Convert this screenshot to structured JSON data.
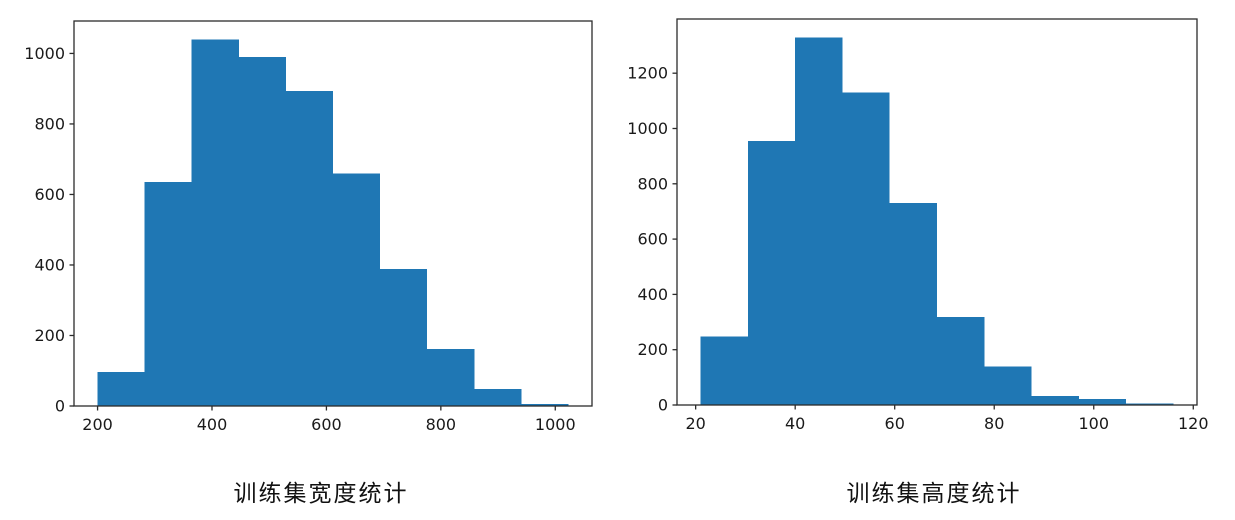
{
  "page": {
    "background": "#ffffff"
  },
  "chart_data": [
    {
      "type": "bar",
      "subtype": "histogram",
      "title": "",
      "caption": "训练集宽度统计",
      "xlabel": "",
      "ylabel": "",
      "bar_color": "#1f77b4",
      "bin_edges": [
        200,
        282.3,
        364.6,
        446.9,
        529.2,
        611.5,
        693.8,
        776.1,
        858.4,
        940.7,
        1023
      ],
      "values": [
        97,
        635,
        1040,
        990,
        893,
        660,
        388,
        162,
        48,
        5
      ],
      "xlim": [
        158.8,
        1064.2
      ],
      "ylim": [
        0,
        1092
      ],
      "x_ticks": [
        200,
        400,
        600,
        800,
        1000
      ],
      "y_ticks": [
        0,
        200,
        400,
        600,
        800,
        1000
      ],
      "grid": false,
      "legend": null
    },
    {
      "type": "bar",
      "subtype": "histogram",
      "title": "",
      "caption": "训练集高度统计",
      "xlabel": "",
      "ylabel": "",
      "bar_color": "#1f77b4",
      "bin_edges": [
        21,
        30.5,
        40,
        49.5,
        59,
        68.5,
        78,
        87.5,
        97,
        106.5,
        116
      ],
      "values": [
        248,
        955,
        1330,
        1130,
        730,
        318,
        140,
        32,
        22,
        6
      ],
      "xlim": [
        16.25,
        120.75
      ],
      "ylim": [
        0,
        1396
      ],
      "x_ticks": [
        20,
        40,
        60,
        80,
        100,
        120
      ],
      "y_ticks": [
        0,
        200,
        400,
        600,
        800,
        1000,
        1200
      ],
      "grid": false,
      "legend": null
    }
  ]
}
